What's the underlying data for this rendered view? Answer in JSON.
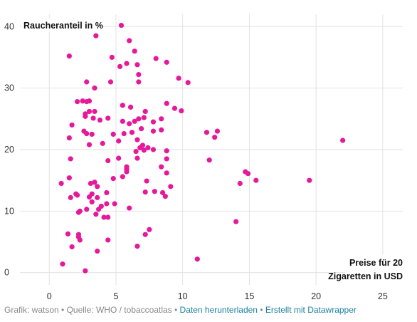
{
  "chart_data": {
    "type": "scatter",
    "ylabel": "Raucheranteil in %",
    "xlabel_lines": [
      "Preise für 20",
      "Zigaretten in USD"
    ],
    "xlim": [
      -2.2,
      26.5
    ],
    "ylim": [
      -2,
      42
    ],
    "x_ticks": [
      "0",
      "5",
      "10",
      "15",
      "20",
      "25"
    ],
    "y_ticks": [
      "0",
      "10",
      "20",
      "30",
      "40"
    ],
    "grid": true,
    "point_color": "#e5199a",
    "points": [
      [
        1.0,
        1.4
      ],
      [
        2.7,
        0.3
      ],
      [
        1.4,
        6.3
      ],
      [
        1.7,
        4.2
      ],
      [
        2.2,
        5.8
      ],
      [
        2.2,
        6.2
      ],
      [
        2.3,
        5.3
      ],
      [
        3.6,
        3.5
      ],
      [
        4.4,
        5.3
      ],
      [
        4.1,
        9.0
      ],
      [
        4.4,
        9.0
      ],
      [
        3.5,
        9.5
      ],
      [
        2.2,
        9.8
      ],
      [
        2.8,
        10.3
      ],
      [
        2.3,
        10.0
      ],
      [
        3.2,
        11.5
      ],
      [
        3.7,
        10.3
      ],
      [
        3.9,
        10.8
      ],
      [
        4.3,
        11.2
      ],
      [
        4.9,
        11.2
      ],
      [
        3.0,
        12.3
      ],
      [
        3.2,
        12.8
      ],
      [
        3.6,
        12.2
      ],
      [
        2.0,
        12.8
      ],
      [
        1.6,
        12.2
      ],
      [
        0.9,
        14.5
      ],
      [
        1.5,
        15.4
      ],
      [
        2.1,
        12.6
      ],
      [
        3.1,
        14.5
      ],
      [
        3.4,
        14.7
      ],
      [
        3.6,
        14.0
      ],
      [
        4.3,
        13.0
      ],
      [
        4.8,
        15.3
      ],
      [
        5.5,
        15.6
      ],
      [
        6.0,
        10.5
      ],
      [
        6.6,
        4.3
      ],
      [
        7.2,
        6.2
      ],
      [
        7.5,
        7.0
      ],
      [
        7.2,
        13.1
      ],
      [
        7.3,
        14.9
      ],
      [
        7.9,
        13.2
      ],
      [
        8.5,
        13.0
      ],
      [
        8.7,
        12.4
      ],
      [
        9.1,
        14.0
      ],
      [
        8.8,
        16.2
      ],
      [
        8.8,
        18.5
      ],
      [
        8.4,
        17.2
      ],
      [
        8.8,
        19.8
      ],
      [
        7.8,
        20.0
      ],
      [
        7.4,
        20.3
      ],
      [
        7.0,
        20.7
      ],
      [
        7.1,
        19.9
      ],
      [
        6.8,
        20.3
      ],
      [
        6.6,
        21.6
      ],
      [
        6.5,
        19.7
      ],
      [
        5.2,
        18.6
      ],
      [
        5.8,
        16.8
      ],
      [
        5.8,
        16.4
      ],
      [
        5.8,
        17.2
      ],
      [
        6.6,
        18.6
      ],
      [
        5.2,
        21.4
      ],
      [
        5.6,
        22.6
      ],
      [
        4.8,
        22.5
      ],
      [
        3.0,
        20.8
      ],
      [
        3.2,
        22.5
      ],
      [
        2.8,
        22.6
      ],
      [
        2.6,
        23.0
      ],
      [
        4.4,
        18.2
      ],
      [
        4.0,
        21.0
      ],
      [
        1.5,
        21.9
      ],
      [
        1.6,
        18.5
      ],
      [
        1.7,
        24.0
      ],
      [
        2.7,
        25.4
      ],
      [
        2.7,
        25.8
      ],
      [
        3.0,
        26.2
      ],
      [
        3.4,
        26.2
      ],
      [
        3.3,
        25.1
      ],
      [
        3.8,
        24.8
      ],
      [
        4.4,
        25.1
      ],
      [
        5.5,
        24.6
      ],
      [
        6.0,
        24.2
      ],
      [
        6.4,
        24.6
      ],
      [
        6.7,
        25.0
      ],
      [
        7.1,
        25.2
      ],
      [
        7.8,
        24.5
      ],
      [
        8.4,
        25.0
      ],
      [
        8.4,
        23.2
      ],
      [
        7.8,
        23.0
      ],
      [
        6.9,
        23.4
      ],
      [
        6.2,
        22.8
      ],
      [
        5.5,
        27.2
      ],
      [
        6.1,
        26.9
      ],
      [
        7.2,
        26.2
      ],
      [
        8.8,
        27.5
      ],
      [
        9.4,
        26.7
      ],
      [
        9.9,
        26.3
      ],
      [
        10.4,
        30.9
      ],
      [
        9.7,
        31.6
      ],
      [
        11.8,
        22.8
      ],
      [
        12.4,
        22.0
      ],
      [
        12.6,
        23.0
      ],
      [
        12.0,
        18.3
      ],
      [
        14.7,
        16.4
      ],
      [
        14.9,
        16.1
      ],
      [
        14.3,
        14.5
      ],
      [
        15.5,
        15.0
      ],
      [
        14.0,
        8.3
      ],
      [
        11.1,
        2.2
      ],
      [
        19.5,
        15.0
      ],
      [
        22.0,
        21.5
      ],
      [
        2.1,
        27.8
      ],
      [
        2.5,
        27.9
      ],
      [
        2.8,
        27.8
      ],
      [
        3.0,
        27.9
      ],
      [
        2.8,
        31.0
      ],
      [
        3.4,
        30.0
      ],
      [
        4.6,
        31.0
      ],
      [
        6.7,
        31.0
      ],
      [
        6.7,
        32.2
      ],
      [
        6.6,
        33.8
      ],
      [
        6.4,
        36.0
      ],
      [
        8.0,
        34.8
      ],
      [
        8.8,
        34.2
      ],
      [
        5.3,
        33.5
      ],
      [
        5.8,
        34.0
      ],
      [
        4.7,
        35.0
      ],
      [
        6.0,
        37.7
      ],
      [
        3.5,
        38.5
      ],
      [
        5.4,
        40.2
      ],
      [
        1.5,
        35.2
      ]
    ]
  },
  "footer": {
    "credit": "Grafik: watson",
    "separator": "•",
    "source": "Quelle: WHO / tobaccoatlas",
    "download_link": "Daten herunterladen",
    "datawrapper_link": "Erstellt mit Datawrapper"
  }
}
